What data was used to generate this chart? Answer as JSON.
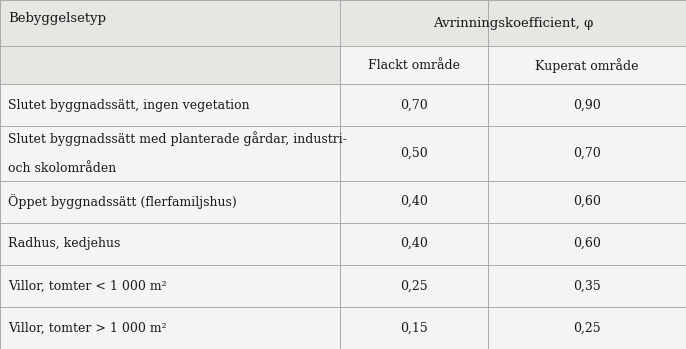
{
  "header_col1": "Bebyggelsetyp",
  "header_col2": "Avrinningskoefficient, φ",
  "subheader_col2": "Flackt område",
  "subheader_col3": "Kuperat område",
  "rows": [
    [
      "Slutet byggnadssätt, ingen vegetation",
      "0,70",
      "0,90"
    ],
    [
      "Slutet byggnadssätt med planterade gårdar, industri-\noch skolområden",
      "0,50",
      "0,70"
    ],
    [
      "Öppet byggnadssätt (flerfamiljshus)",
      "0,40",
      "0,60"
    ],
    [
      "Radhus, kedjehus",
      "0,40",
      "0,60"
    ],
    [
      "Villor, tomter < 1 000 m²",
      "0,25",
      "0,35"
    ],
    [
      "Villor, tomter > 1 000 m²",
      "0,15",
      "0,25"
    ]
  ],
  "bg_color": "#e8e6e3",
  "header_bg": "#e8e6e3",
  "data_bg": "#f5f4f2",
  "white_bg": "#f5f4f2",
  "line_color": "#aaaaaa",
  "text_color": "#1a1a1a",
  "font_size": 9.0,
  "header_font_size": 9.5,
  "col_split": 0.496,
  "col_mid": 0.7115,
  "fig_width": 6.86,
  "fig_height": 3.49,
  "dpi": 100
}
